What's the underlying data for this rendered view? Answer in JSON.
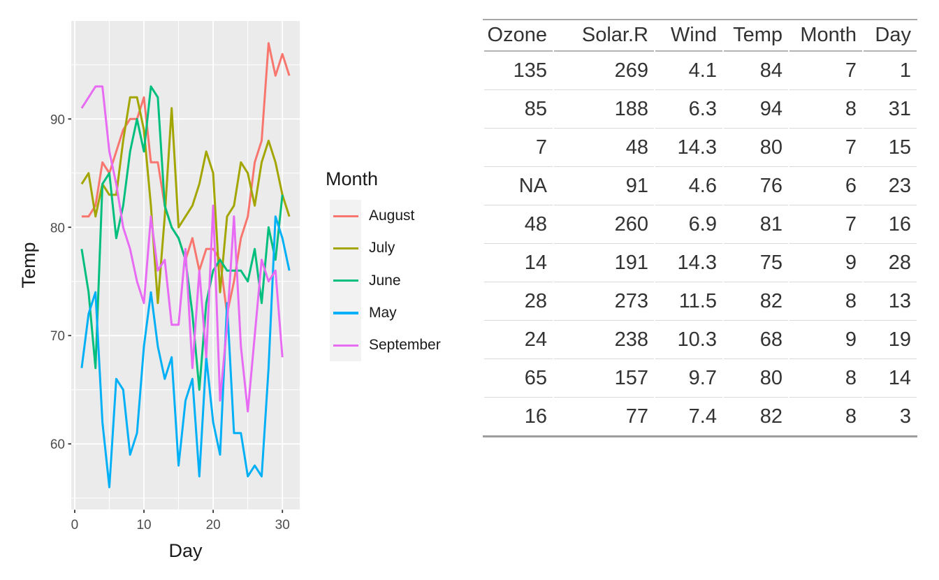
{
  "chart_data": {
    "type": "line",
    "title": "",
    "xlabel": "Day",
    "ylabel": "Temp",
    "x_unit": "day of month; each series value i corresponds to Day i+1",
    "x_ticks": [
      0,
      10,
      20,
      30
    ],
    "x_minor_ticks": [
      5,
      15,
      25
    ],
    "y_ticks": [
      60,
      70,
      80,
      90
    ],
    "y_minor_ticks": [
      55,
      65,
      75,
      85,
      95
    ],
    "xlim": [
      -0.5,
      32.5
    ],
    "ylim": [
      53.95,
      99.05
    ],
    "grid": "white major and minor gridlines on grey panel",
    "panel_bg": "#EBEBEB",
    "legend_title": "Month",
    "legend_position": "right",
    "legend_key_bg": "#F2F2F2",
    "axis_text_color": "#4D4D4D",
    "axis_title_color": "#1a1a1a",
    "series": [
      {
        "name": "August",
        "color": "#F8766D",
        "values": [
          81,
          81,
          82,
          86,
          85,
          87,
          89,
          90,
          90,
          92,
          86,
          86,
          82,
          80,
          79,
          77,
          79,
          76,
          78,
          78,
          77,
          72,
          75,
          79,
          81,
          86,
          88,
          97,
          94,
          96,
          94
        ]
      },
      {
        "name": "July",
        "color": "#A3A500",
        "values": [
          84,
          85,
          81,
          84,
          83,
          83,
          88,
          92,
          92,
          89,
          82,
          73,
          81,
          91,
          80,
          81,
          82,
          84,
          87,
          85,
          74,
          81,
          82,
          86,
          85,
          82,
          86,
          88,
          86,
          83,
          81
        ]
      },
      {
        "name": "June",
        "color": "#00BF7D",
        "values": [
          78,
          74,
          67,
          84,
          85,
          79,
          82,
          87,
          90,
          87,
          93,
          92,
          82,
          80,
          79,
          77,
          72,
          65,
          73,
          76,
          77,
          76,
          76,
          76,
          75,
          78,
          73,
          80,
          77,
          83
        ]
      },
      {
        "name": "May",
        "color": "#00B0F6",
        "values": [
          67,
          72,
          74,
          62,
          56,
          66,
          65,
          59,
          61,
          69,
          74,
          69,
          66,
          68,
          58,
          64,
          66,
          57,
          68,
          62,
          59,
          73,
          61,
          61,
          57,
          58,
          57,
          67,
          81,
          79,
          76
        ]
      },
      {
        "name": "September",
        "color": "#E76BF3",
        "values": [
          91,
          92,
          93,
          93,
          87,
          84,
          80,
          78,
          75,
          73,
          81,
          76,
          77,
          71,
          71,
          78,
          67,
          76,
          68,
          82,
          64,
          71,
          81,
          69,
          63,
          70,
          77,
          75,
          76,
          68
        ]
      }
    ]
  },
  "table": {
    "columns": [
      "Ozone",
      "Solar.R",
      "Wind",
      "Temp",
      "Month",
      "Day"
    ],
    "rows": [
      [
        "135",
        "269",
        "4.1",
        "84",
        "7",
        "1"
      ],
      [
        "85",
        "188",
        "6.3",
        "94",
        "8",
        "31"
      ],
      [
        "7",
        "48",
        "14.3",
        "80",
        "7",
        "15"
      ],
      [
        "NA",
        "91",
        "4.6",
        "76",
        "6",
        "23"
      ],
      [
        "48",
        "260",
        "6.9",
        "81",
        "7",
        "16"
      ],
      [
        "14",
        "191",
        "14.3",
        "75",
        "9",
        "28"
      ],
      [
        "28",
        "273",
        "11.5",
        "82",
        "8",
        "13"
      ],
      [
        "24",
        "238",
        "10.3",
        "68",
        "9",
        "19"
      ],
      [
        "65",
        "157",
        "9.7",
        "80",
        "8",
        "14"
      ],
      [
        "16",
        "77",
        "7.4",
        "82",
        "8",
        "3"
      ]
    ]
  }
}
